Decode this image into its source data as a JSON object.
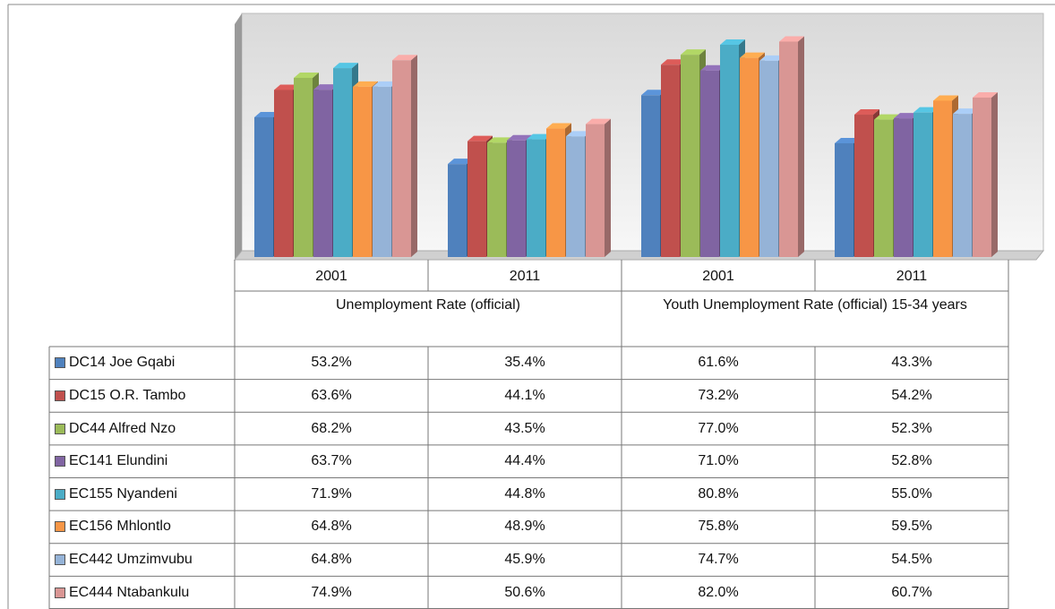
{
  "chart_data": {
    "type": "bar3d",
    "categories": [
      "2001",
      "2011",
      "2001",
      "2011"
    ],
    "groups": [
      "Unemployment Rate (official)",
      "Youth Unemployment Rate (official) 15-34 years"
    ],
    "ylim": [
      0,
      90
    ],
    "series": [
      {
        "name": "DC14 Joe Gqabi",
        "color": "#4f81bd",
        "values": [
          53.2,
          35.4,
          61.6,
          43.3
        ],
        "value_labels": [
          "53.2%",
          "35.4%",
          "61.6%",
          "43.3%"
        ]
      },
      {
        "name": "DC15 O.R. Tambo",
        "color": "#c0504d",
        "values": [
          63.6,
          44.1,
          73.2,
          54.2
        ],
        "value_labels": [
          "63.6%",
          "44.1%",
          "73.2%",
          "54.2%"
        ]
      },
      {
        "name": "DC44 Alfred Nzo",
        "color": "#9bbb59",
        "values": [
          68.2,
          43.5,
          77.0,
          52.3
        ],
        "value_labels": [
          "68.2%",
          "43.5%",
          "77.0%",
          "52.3%"
        ]
      },
      {
        "name": "EC141 Elundini",
        "color": "#8064a2",
        "values": [
          63.7,
          44.4,
          71.0,
          52.8
        ],
        "value_labels": [
          "63.7%",
          "44.4%",
          "71.0%",
          "52.8%"
        ]
      },
      {
        "name": "EC155 Nyandeni",
        "color": "#4bacc6",
        "values": [
          71.9,
          44.8,
          80.8,
          55.0
        ],
        "value_labels": [
          "71.9%",
          "44.8%",
          "80.8%",
          "55.0%"
        ]
      },
      {
        "name": "EC156 Mhlontlo",
        "color": "#f79646",
        "values": [
          64.8,
          48.9,
          75.8,
          59.5
        ],
        "value_labels": [
          "64.8%",
          "48.9%",
          "75.8%",
          "59.5%"
        ]
      },
      {
        "name": "EC442 Umzimvubu",
        "color": "#95b3d7",
        "values": [
          64.8,
          45.9,
          74.7,
          54.5
        ],
        "value_labels": [
          "64.8%",
          "45.9%",
          "74.7%",
          "54.5%"
        ]
      },
      {
        "name": "EC444 Ntabankulu",
        "color": "#d99694",
        "values": [
          74.9,
          50.6,
          82.0,
          60.7
        ],
        "value_labels": [
          "74.9%",
          "50.6%",
          "82.0%",
          "60.7%"
        ]
      }
    ]
  }
}
